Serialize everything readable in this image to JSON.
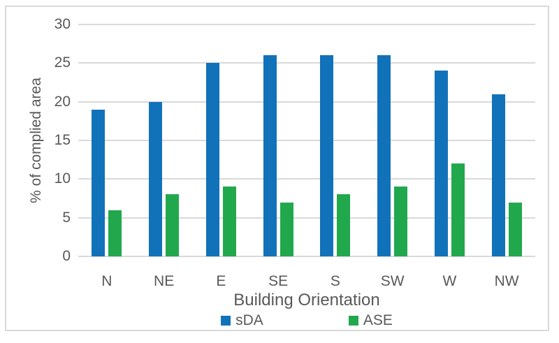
{
  "chart_data": {
    "type": "bar",
    "title": "",
    "categories": [
      "N",
      "NE",
      "E",
      "SE",
      "S",
      "SW",
      "W",
      "NW"
    ],
    "series": [
      {
        "name": "sDA",
        "color": "#1172ba",
        "values": [
          19,
          20,
          25,
          26,
          26,
          26,
          24,
          21
        ]
      },
      {
        "name": "ASE",
        "color": "#21a84d",
        "values": [
          6,
          8,
          9,
          7,
          8,
          9,
          12,
          7
        ]
      }
    ],
    "xlabel": "Building Orientation",
    "ylabel": "% of complied area",
    "ylim": [
      0,
      30
    ],
    "yticks": [
      0,
      5,
      10,
      15,
      20,
      25,
      30
    ],
    "grid": true,
    "legend_position": "bottom"
  },
  "colors": {
    "gridline": "#d9d9d9",
    "frame_border": "#d9d9d9",
    "axis_text": "#595959",
    "background": "#ffffff"
  }
}
